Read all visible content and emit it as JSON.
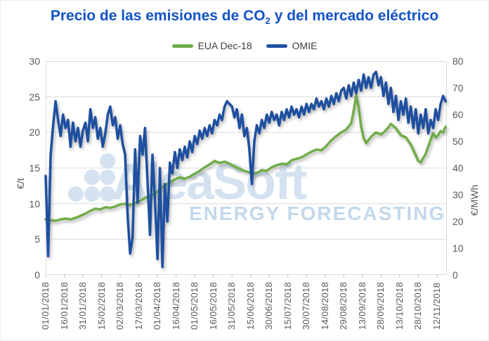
{
  "title": {
    "pre": "Precio de las emisiones de CO",
    "sub": "2",
    "post": " y del mercado eléctrico"
  },
  "legend": [
    {
      "label": "EUA Dec-18",
      "color": "#70AD47"
    },
    {
      "label": "OMIE",
      "color": "#1E4FA0"
    }
  ],
  "watermark": {
    "brand": "AleaSoft",
    "tagline": "ENERGY FORECASTING"
  },
  "left_axis": {
    "title": "€/t",
    "min": 0,
    "max": 30,
    "ticks": [
      0,
      5,
      10,
      15,
      20,
      25,
      30
    ]
  },
  "right_axis": {
    "title": "€/MWh",
    "min": 0,
    "max": 80,
    "ticks": [
      0,
      10,
      20,
      30,
      40,
      50,
      60,
      70,
      80
    ]
  },
  "colors": {
    "title": "#1353C8",
    "grid": "#D9D9D9",
    "axis_text": "#595959",
    "tick": "#C0C0C0",
    "watermark_light": "#D4E1F0",
    "watermark_tag": "#C4D8EC"
  },
  "chart_data": {
    "type": "line",
    "title": "Precio de las emisiones de CO2 y del mercado eléctrico",
    "x_unit": "date (dd/mm/yyyy), day offsets from 01/01/2018",
    "x_max_days": 323,
    "grid": "horizontal",
    "legend_position": "top",
    "x_tick_days": [
      0,
      15,
      30,
      45,
      60,
      75,
      90,
      105,
      120,
      135,
      150,
      165,
      180,
      195,
      210,
      225,
      240,
      255,
      270,
      285,
      300,
      315
    ],
    "x_tick_labels": [
      "01/01/2018",
      "16/01/2018",
      "31/01/2018",
      "15/02/2018",
      "02/03/2018",
      "17/03/2018",
      "01/04/2018",
      "16/04/2018",
      "01/05/2018",
      "16/05/2018",
      "31/05/2018",
      "15/06/2018",
      "30/06/2018",
      "15/07/2018",
      "30/07/2018",
      "14/08/2018",
      "29/08/2018",
      "13/09/2018",
      "28/09/2018",
      "13/10/2018",
      "28/10/2018",
      "12/11/2018"
    ],
    "series": [
      {
        "name": "EUA Dec-18",
        "axis": "left",
        "unit": "€/t",
        "color": "#70AD47",
        "points": [
          [
            0,
            7.8
          ],
          [
            4,
            7.7
          ],
          [
            8,
            7.6
          ],
          [
            12,
            7.8
          ],
          [
            16,
            7.9
          ],
          [
            20,
            7.8
          ],
          [
            24,
            8.0
          ],
          [
            28,
            8.3
          ],
          [
            32,
            8.6
          ],
          [
            36,
            9.0
          ],
          [
            40,
            9.3
          ],
          [
            44,
            9.2
          ],
          [
            48,
            9.5
          ],
          [
            52,
            9.4
          ],
          [
            56,
            9.6
          ],
          [
            60,
            9.9
          ],
          [
            64,
            10.0
          ],
          [
            68,
            9.8
          ],
          [
            72,
            10.1
          ],
          [
            76,
            10.4
          ],
          [
            80,
            10.8
          ],
          [
            84,
            11.1
          ],
          [
            88,
            11.4
          ],
          [
            92,
            12.0
          ],
          [
            96,
            12.6
          ],
          [
            100,
            13.0
          ],
          [
            104,
            13.4
          ],
          [
            108,
            13.7
          ],
          [
            112,
            13.5
          ],
          [
            116,
            13.8
          ],
          [
            120,
            14.2
          ],
          [
            124,
            14.6
          ],
          [
            128,
            15.1
          ],
          [
            132,
            15.5
          ],
          [
            136,
            16.0
          ],
          [
            140,
            15.7
          ],
          [
            144,
            15.9
          ],
          [
            148,
            15.6
          ],
          [
            152,
            15.2
          ],
          [
            156,
            14.9
          ],
          [
            160,
            14.6
          ],
          [
            164,
            14.4
          ],
          [
            166,
            14.2
          ],
          [
            170,
            14.3
          ],
          [
            174,
            14.7
          ],
          [
            178,
            14.6
          ],
          [
            182,
            15.1
          ],
          [
            186,
            15.4
          ],
          [
            190,
            15.6
          ],
          [
            194,
            15.5
          ],
          [
            198,
            16.1
          ],
          [
            202,
            16.3
          ],
          [
            206,
            16.5
          ],
          [
            210,
            16.9
          ],
          [
            214,
            17.3
          ],
          [
            218,
            17.6
          ],
          [
            222,
            17.5
          ],
          [
            226,
            18.1
          ],
          [
            230,
            18.9
          ],
          [
            234,
            19.5
          ],
          [
            238,
            20.0
          ],
          [
            242,
            20.4
          ],
          [
            246,
            21.3
          ],
          [
            248,
            23.0
          ],
          [
            250,
            25.2
          ],
          [
            252,
            23.5
          ],
          [
            254,
            20.8
          ],
          [
            256,
            19.2
          ],
          [
            258,
            18.5
          ],
          [
            262,
            19.4
          ],
          [
            266,
            20.0
          ],
          [
            270,
            19.7
          ],
          [
            274,
            20.3
          ],
          [
            278,
            21.2
          ],
          [
            282,
            20.6
          ],
          [
            286,
            19.6
          ],
          [
            290,
            19.3
          ],
          [
            294,
            18.3
          ],
          [
            298,
            16.8
          ],
          [
            300,
            16.0
          ],
          [
            302,
            15.8
          ],
          [
            306,
            17.0
          ],
          [
            310,
            19.0
          ],
          [
            312,
            19.9
          ],
          [
            314,
            19.3
          ],
          [
            316,
            19.6
          ],
          [
            318,
            20.2
          ],
          [
            320,
            20.0
          ],
          [
            322,
            20.8
          ]
        ]
      },
      {
        "name": "OMIE",
        "axis": "right",
        "unit": "€/MWh",
        "color": "#1E4FA0",
        "points": [
          [
            0,
            37
          ],
          [
            1,
            22
          ],
          [
            2,
            7
          ],
          [
            4,
            45
          ],
          [
            6,
            56
          ],
          [
            8,
            65
          ],
          [
            10,
            58
          ],
          [
            12,
            52
          ],
          [
            14,
            60
          ],
          [
            16,
            55
          ],
          [
            18,
            58
          ],
          [
            20,
            48
          ],
          [
            22,
            57
          ],
          [
            24,
            50
          ],
          [
            26,
            55
          ],
          [
            28,
            48
          ],
          [
            30,
            54
          ],
          [
            32,
            57
          ],
          [
            34,
            50
          ],
          [
            36,
            62
          ],
          [
            38,
            55
          ],
          [
            40,
            59
          ],
          [
            42,
            51
          ],
          [
            44,
            55
          ],
          [
            46,
            48
          ],
          [
            48,
            53
          ],
          [
            50,
            60
          ],
          [
            52,
            63
          ],
          [
            54,
            56
          ],
          [
            56,
            59
          ],
          [
            58,
            51
          ],
          [
            60,
            56
          ],
          [
            62,
            49
          ],
          [
            64,
            45
          ],
          [
            66,
            22
          ],
          [
            68,
            8
          ],
          [
            70,
            14
          ],
          [
            72,
            47
          ],
          [
            74,
            27
          ],
          [
            76,
            52
          ],
          [
            78,
            45
          ],
          [
            80,
            55
          ],
          [
            82,
            35
          ],
          [
            84,
            15
          ],
          [
            86,
            45
          ],
          [
            88,
            28
          ],
          [
            90,
            6
          ],
          [
            92,
            40
          ],
          [
            94,
            3
          ],
          [
            96,
            34
          ],
          [
            98,
            20
          ],
          [
            100,
            42
          ],
          [
            102,
            38
          ],
          [
            104,
            46
          ],
          [
            106,
            40
          ],
          [
            108,
            47
          ],
          [
            110,
            43
          ],
          [
            112,
            48
          ],
          [
            114,
            44
          ],
          [
            116,
            50
          ],
          [
            118,
            46
          ],
          [
            120,
            52
          ],
          [
            122,
            49
          ],
          [
            124,
            54
          ],
          [
            126,
            51
          ],
          [
            128,
            55
          ],
          [
            130,
            52
          ],
          [
            132,
            56
          ],
          [
            134,
            53
          ],
          [
            136,
            58
          ],
          [
            138,
            56
          ],
          [
            140,
            60
          ],
          [
            142,
            58
          ],
          [
            144,
            63
          ],
          [
            146,
            65
          ],
          [
            148,
            64
          ],
          [
            150,
            63
          ],
          [
            152,
            59
          ],
          [
            154,
            62
          ],
          [
            156,
            55
          ],
          [
            158,
            60
          ],
          [
            160,
            52
          ],
          [
            162,
            55
          ],
          [
            164,
            47
          ],
          [
            166,
            34
          ],
          [
            168,
            50
          ],
          [
            170,
            56
          ],
          [
            172,
            53
          ],
          [
            174,
            58
          ],
          [
            176,
            55
          ],
          [
            178,
            60
          ],
          [
            180,
            57
          ],
          [
            182,
            61
          ],
          [
            184,
            58
          ],
          [
            186,
            60
          ],
          [
            188,
            56
          ],
          [
            190,
            61
          ],
          [
            192,
            58
          ],
          [
            194,
            62
          ],
          [
            196,
            59
          ],
          [
            198,
            63
          ],
          [
            200,
            60
          ],
          [
            202,
            62
          ],
          [
            204,
            59
          ],
          [
            206,
            63
          ],
          [
            208,
            60
          ],
          [
            210,
            64
          ],
          [
            212,
            61
          ],
          [
            214,
            64
          ],
          [
            216,
            62
          ],
          [
            218,
            66
          ],
          [
            220,
            63
          ],
          [
            222,
            65
          ],
          [
            224,
            62
          ],
          [
            226,
            66
          ],
          [
            228,
            63
          ],
          [
            230,
            67
          ],
          [
            232,
            64
          ],
          [
            234,
            68
          ],
          [
            236,
            65
          ],
          [
            238,
            69
          ],
          [
            240,
            70
          ],
          [
            242,
            66
          ],
          [
            244,
            71
          ],
          [
            246,
            67
          ],
          [
            248,
            72
          ],
          [
            250,
            68
          ],
          [
            252,
            73
          ],
          [
            254,
            69
          ],
          [
            256,
            75
          ],
          [
            258,
            70
          ],
          [
            260,
            74
          ],
          [
            262,
            70
          ],
          [
            264,
            75
          ],
          [
            266,
            76
          ],
          [
            268,
            71
          ],
          [
            270,
            74
          ],
          [
            272,
            67
          ],
          [
            274,
            72
          ],
          [
            276,
            64
          ],
          [
            278,
            70
          ],
          [
            280,
            61
          ],
          [
            282,
            67
          ],
          [
            284,
            58
          ],
          [
            286,
            65
          ],
          [
            288,
            60
          ],
          [
            290,
            66
          ],
          [
            292,
            57
          ],
          [
            294,
            63
          ],
          [
            296,
            55
          ],
          [
            298,
            62
          ],
          [
            300,
            53
          ],
          [
            302,
            60
          ],
          [
            304,
            55
          ],
          [
            306,
            62
          ],
          [
            308,
            53
          ],
          [
            310,
            58
          ],
          [
            312,
            55
          ],
          [
            314,
            62
          ],
          [
            316,
            58
          ],
          [
            318,
            64
          ],
          [
            320,
            67
          ],
          [
            322,
            65
          ]
        ]
      }
    ]
  }
}
